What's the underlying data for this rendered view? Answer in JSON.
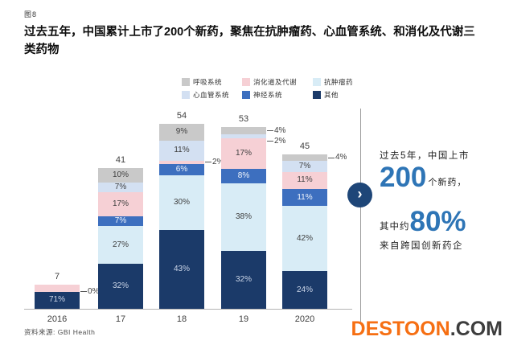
{
  "figure_label": "图8",
  "title": "过去五年，中国累计上市了200个新药，聚焦在抗肿瘤药、心血管系统、和消化及代谢三类药物",
  "icons": {
    "chevron_right": "›"
  },
  "chart_data": {
    "type": "bar",
    "stacked": true,
    "x_categories": [
      "2016",
      "17",
      "18",
      "19",
      "2020"
    ],
    "bar_totals": [
      7,
      41,
      54,
      53,
      45
    ],
    "values_are": "percent_share_of_bar_total",
    "stack_order_bottom_to_top": [
      "其他",
      "抗肿瘤药",
      "神经系统",
      "消化道及代谢",
      "心血管系统",
      "呼吸系统"
    ],
    "legend_rows": [
      [
        "呼吸系统",
        "消化道及代谢",
        "抗肿瘤药"
      ],
      [
        "心血管系统",
        "神经系统",
        "其他"
      ]
    ],
    "series_styles": {
      "呼吸系统": {
        "color": "#c9c9c9",
        "label_color": "#3f3f3f"
      },
      "消化道及代谢": {
        "color": "#f6d0d5",
        "label_color": "#3f3f3f"
      },
      "抗肿瘤药": {
        "color": "#d8ecf6",
        "label_color": "#3f3f3f"
      },
      "心血管系统": {
        "color": "#d3e0f2",
        "label_color": "#3f3f3f"
      },
      "神经系统": {
        "color": "#3d6fbf",
        "label_color": "#f2f6fc"
      },
      "其他": {
        "color": "#1b3a69",
        "label_color": "#ccd6e8"
      }
    },
    "bars": [
      {
        "category": "2016",
        "total": 7,
        "segments": [
          {
            "series": "其他",
            "pct": 71,
            "label": "71%",
            "display": "inside"
          },
          {
            "series": "抗肿瘤药",
            "pct": 0,
            "label": "0%",
            "display": "callout"
          },
          {
            "series": "消化道及代谢",
            "pct": 29,
            "label": "",
            "display": "none"
          }
        ]
      },
      {
        "category": "17",
        "total": 41,
        "segments": [
          {
            "series": "其他",
            "pct": 32,
            "label": "32%",
            "display": "inside"
          },
          {
            "series": "抗肿瘤药",
            "pct": 27,
            "label": "27%",
            "display": "inside"
          },
          {
            "series": "神经系统",
            "pct": 7,
            "label": "7%",
            "display": "inside"
          },
          {
            "series": "消化道及代谢",
            "pct": 17,
            "label": "17%",
            "display": "inside"
          },
          {
            "series": "心血管系统",
            "pct": 7,
            "label": "7%",
            "display": "inside"
          },
          {
            "series": "呼吸系统",
            "pct": 10,
            "label": "10%",
            "display": "inside"
          }
        ]
      },
      {
        "category": "18",
        "total": 54,
        "segments": [
          {
            "series": "其他",
            "pct": 43,
            "label": "43%",
            "display": "inside"
          },
          {
            "series": "抗肿瘤药",
            "pct": 30,
            "label": "30%",
            "display": "inside"
          },
          {
            "series": "神经系统",
            "pct": 6,
            "label": "6%",
            "display": "inside"
          },
          {
            "series": "消化道及代谢",
            "pct": 2,
            "label": "2%",
            "display": "callout"
          },
          {
            "series": "心血管系统",
            "pct": 11,
            "label": "11%",
            "display": "inside"
          },
          {
            "series": "呼吸系统",
            "pct": 9,
            "label": "9%",
            "display": "inside"
          }
        ]
      },
      {
        "category": "19",
        "total": 53,
        "segments": [
          {
            "series": "其他",
            "pct": 32,
            "label": "32%",
            "display": "inside"
          },
          {
            "series": "抗肿瘤药",
            "pct": 38,
            "label": "38%",
            "display": "inside"
          },
          {
            "series": "神经系统",
            "pct": 8,
            "label": "8%",
            "display": "inside"
          },
          {
            "series": "消化道及代谢",
            "pct": 17,
            "label": "17%",
            "display": "inside"
          },
          {
            "series": "心血管系统",
            "pct": 2,
            "label": "2%",
            "display": "callout"
          },
          {
            "series": "呼吸系统",
            "pct": 4,
            "label": "4%",
            "display": "callout"
          }
        ]
      },
      {
        "category": "2020",
        "total": 45,
        "segments": [
          {
            "series": "其他",
            "pct": 24,
            "label": "24%",
            "display": "inside"
          },
          {
            "series": "抗肿瘤药",
            "pct": 42,
            "label": "42%",
            "display": "inside"
          },
          {
            "series": "神经系统",
            "pct": 11,
            "label": "11%",
            "display": "inside"
          },
          {
            "series": "消化道及代谢",
            "pct": 11,
            "label": "11%",
            "display": "inside"
          },
          {
            "series": "心血管系统",
            "pct": 7,
            "label": "7%",
            "display": "inside"
          },
          {
            "series": "呼吸系统",
            "pct": 4,
            "label": "4%",
            "display": "callout"
          }
        ]
      }
    ]
  },
  "right_panel": {
    "line1": "过去5年，中国上市",
    "stat1_value": "200",
    "stat1_suffix": "个新药，",
    "stat2_prefix": "其中约",
    "stat2_value": "80%",
    "line3": "来自跨国创新药企",
    "accent_color": "#2e75b6"
  },
  "source_note": "资料来源: GBI Health",
  "watermark": {
    "part1": "DESTOON",
    "part2": ".COM",
    "part1_color": "#f66f13",
    "part2_color": "#3d3d3d"
  }
}
